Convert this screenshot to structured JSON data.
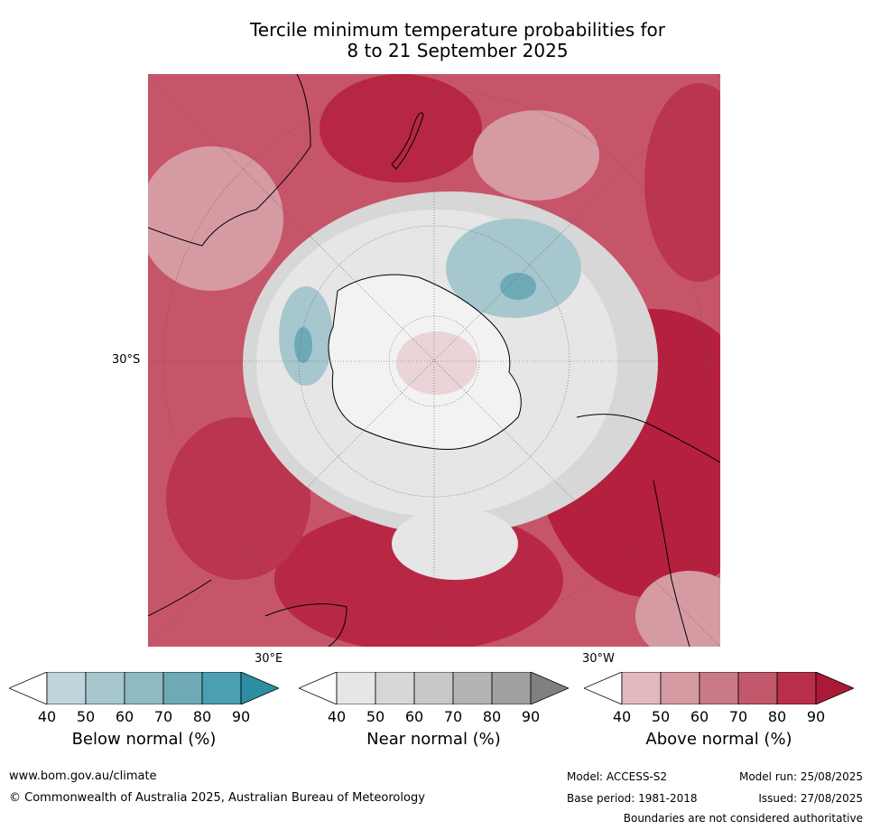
{
  "title_line1": "Tercile minimum temperature probabilities for",
  "title_line2": "8 to 21 September 2025",
  "map": {
    "lat_label": "30°S",
    "lon_label_east": "30°E",
    "lon_label_west": "30°W"
  },
  "colorbars": [
    {
      "caption": "Below normal (%)",
      "ticks": [
        "40",
        "50",
        "60",
        "70",
        "80",
        "90"
      ],
      "colors": [
        "#ffffff",
        "#bed5dc",
        "#a7c7ce",
        "#8fbac2",
        "#6eaab6",
        "#4a9fb0",
        "#2c8ea3"
      ]
    },
    {
      "caption": "Near normal (%)",
      "ticks": [
        "40",
        "50",
        "60",
        "70",
        "80",
        "90"
      ],
      "colors": [
        "#ffffff",
        "#e6e6e6",
        "#d7d7d7",
        "#c8c8c8",
        "#b4b4b4",
        "#a0a0a0",
        "#808080"
      ]
    },
    {
      "caption": "Above normal (%)",
      "ticks": [
        "40",
        "50",
        "60",
        "70",
        "80",
        "90"
      ],
      "colors": [
        "#ffffff",
        "#e3b9bf",
        "#d69aa3",
        "#ca7b87",
        "#c2586b",
        "#b92e48",
        "#aa1a36"
      ]
    }
  ],
  "footer": {
    "website": "www.bom.gov.au/climate",
    "copyright": "© Commonwealth of Australia 2025, Australian Bureau of Meteorology",
    "model": "Model: ACCESS-S2",
    "base_period": "Base period: 1981-2018",
    "model_run": "Model run: 25/08/2025",
    "issued": "Issued: 27/08/2025",
    "disclaimer": "Boundaries are not considered authoritative"
  }
}
